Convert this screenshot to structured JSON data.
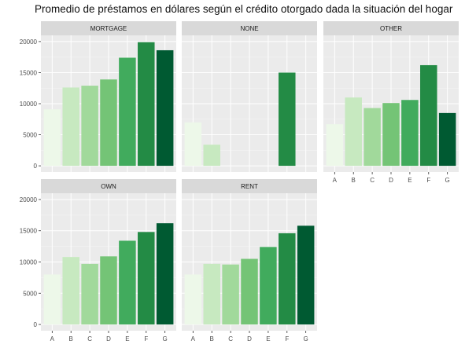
{
  "chart_data": {
    "type": "bar",
    "title": "Promedio de préstamos en dólares según el crédito otorgado dada la situación del hogar",
    "xlabel": "",
    "ylabel": "",
    "categories": [
      "A",
      "B",
      "C",
      "D",
      "E",
      "F",
      "G"
    ],
    "yticks": [
      "0",
      "5000",
      "10000",
      "15000",
      "20000"
    ],
    "ylim": [
      -1000,
      21000
    ],
    "grid": true,
    "legend": "none",
    "colors": [
      "#edf8e9",
      "#c7e9c0",
      "#a1d99b",
      "#74c476",
      "#41ab5d",
      "#238b45",
      "#005a32"
    ],
    "panel_background": "#ebebeb",
    "strip_background": "#d9d9d9",
    "facets": [
      {
        "label": "MORTGAGE",
        "values": [
          9100,
          12600,
          12900,
          13900,
          17400,
          19900,
          18600
        ]
      },
      {
        "label": "NONE",
        "values": [
          7000,
          3400,
          null,
          null,
          null,
          15000,
          null
        ]
      },
      {
        "label": "OTHER",
        "values": [
          6700,
          11000,
          9300,
          10100,
          10600,
          16200,
          8500
        ]
      },
      {
        "label": "OWN",
        "values": [
          8000,
          10800,
          9700,
          10900,
          13400,
          14800,
          16200
        ]
      },
      {
        "label": "RENT",
        "values": [
          8000,
          9700,
          9600,
          10500,
          12400,
          14600,
          15800
        ]
      }
    ]
  }
}
